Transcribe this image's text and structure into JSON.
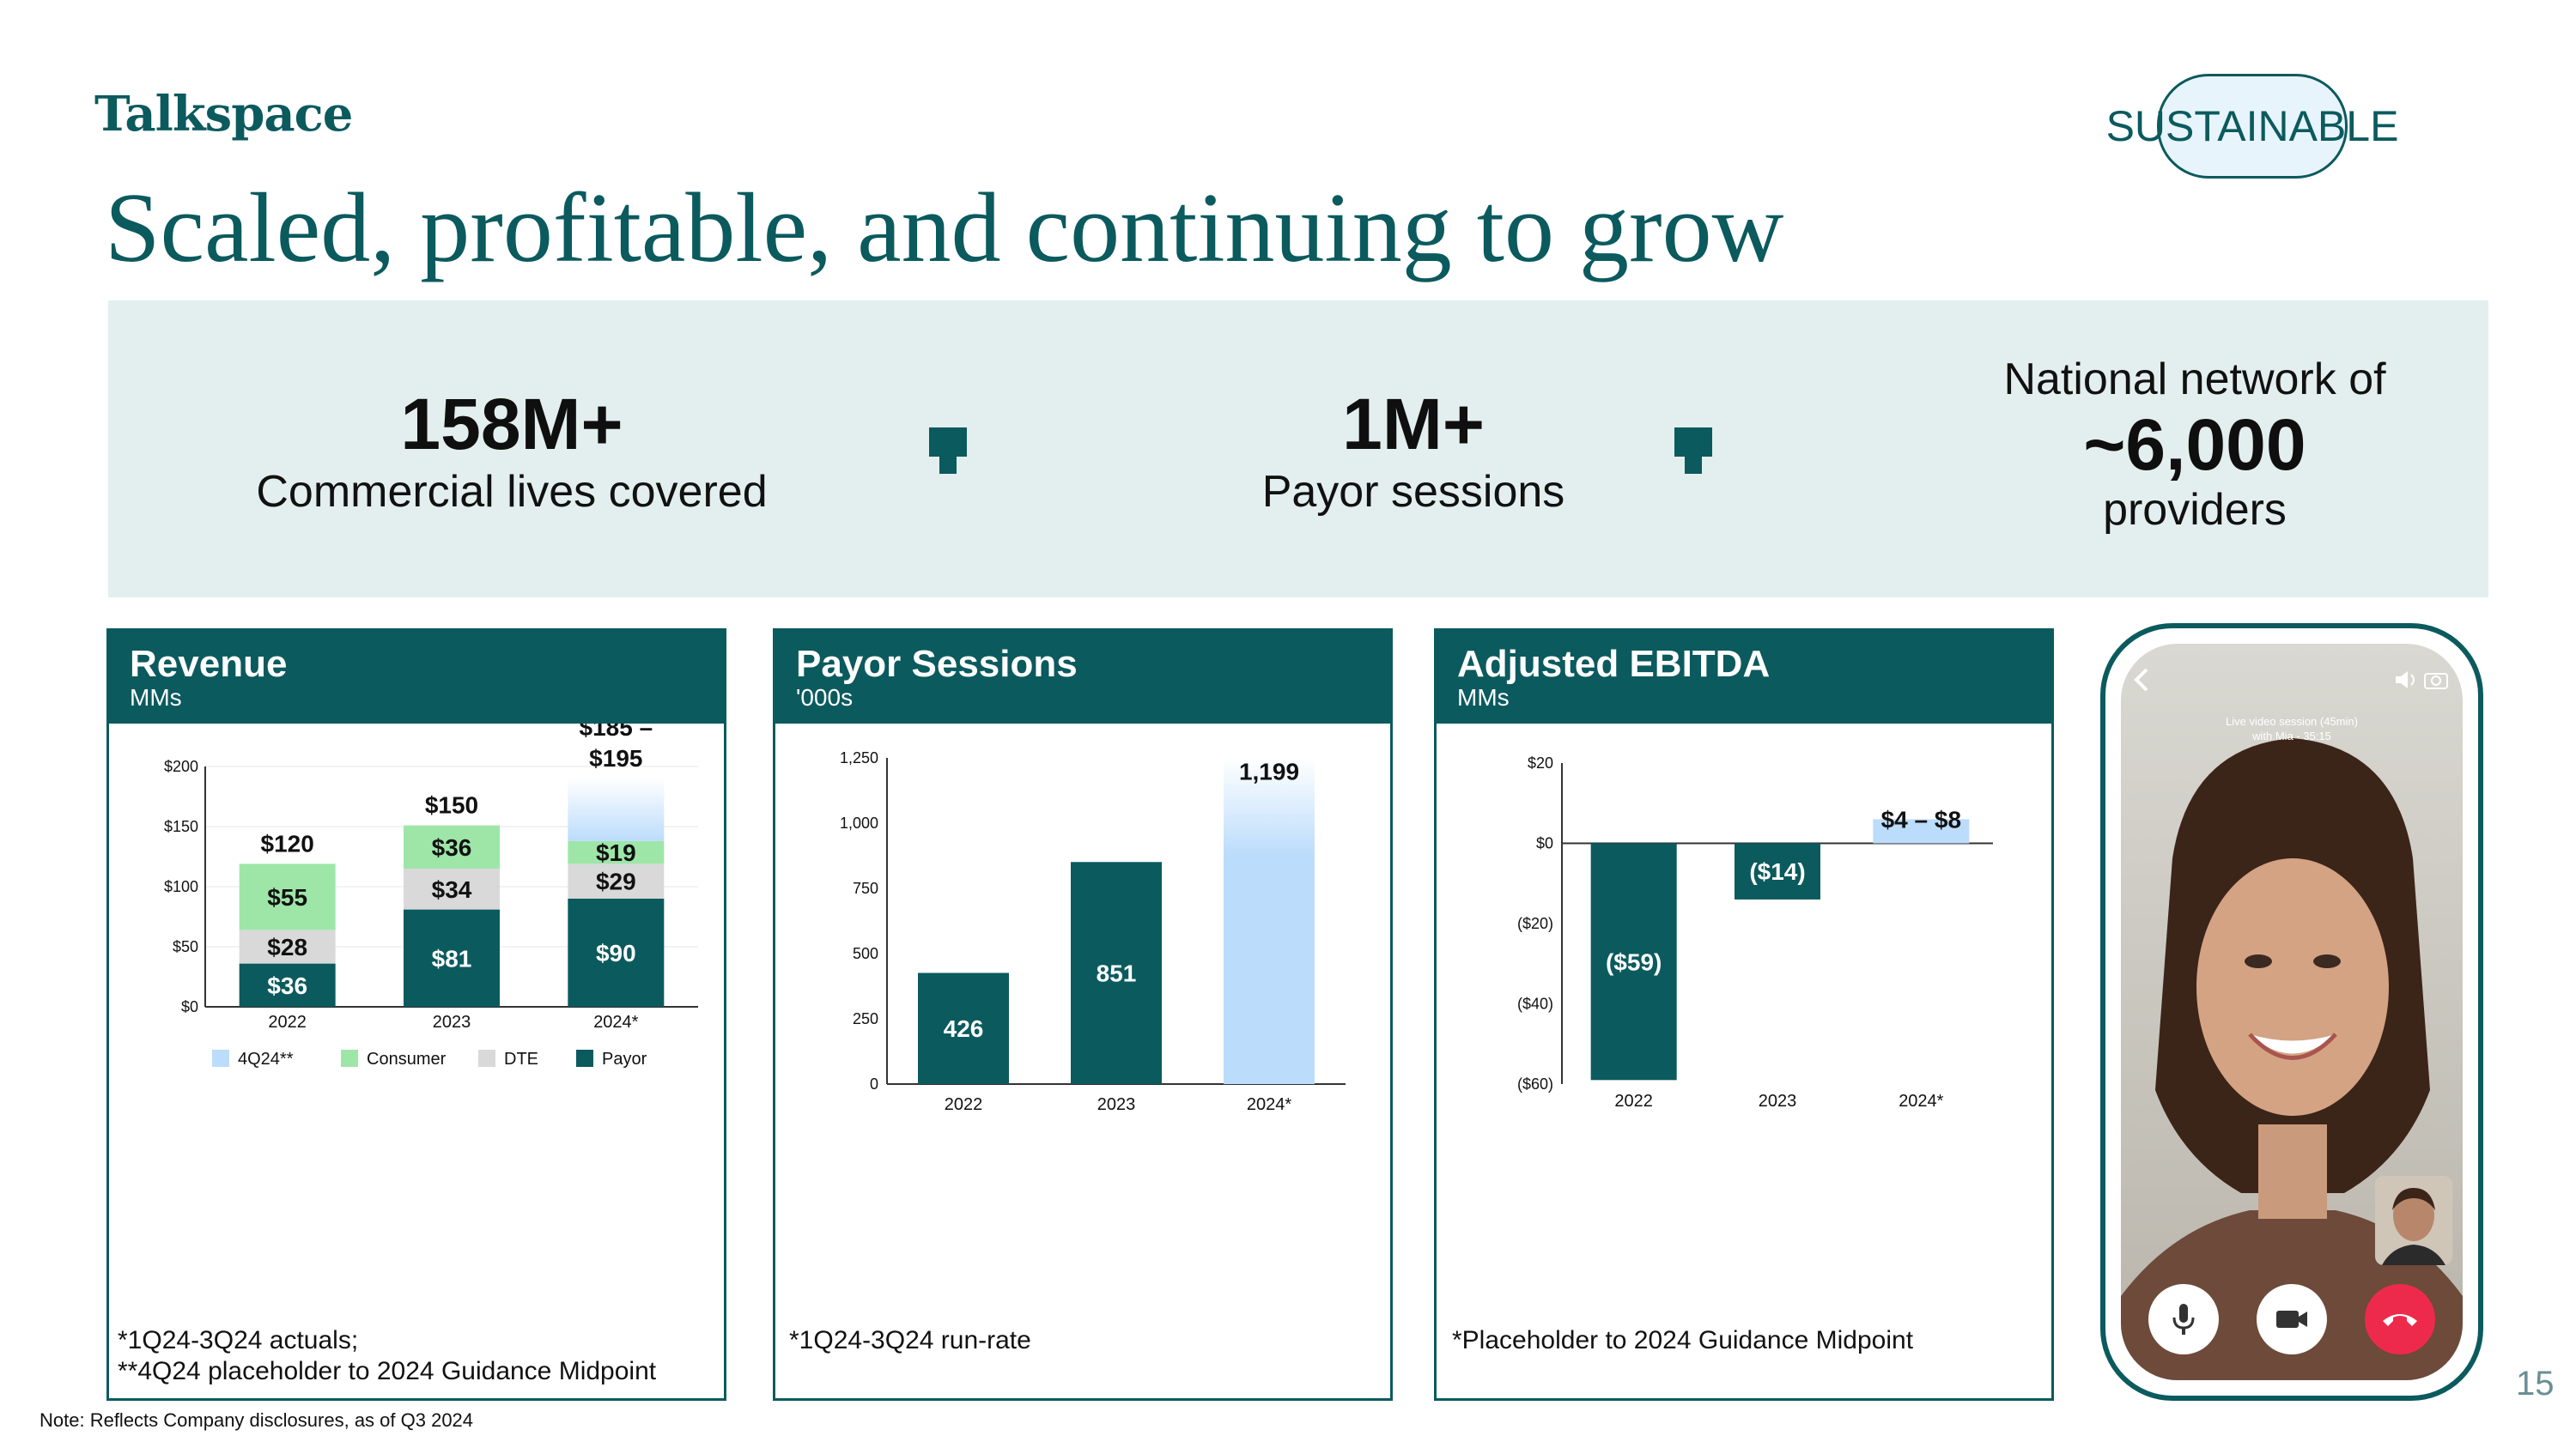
{
  "brand": {
    "logo_text": "Talkspace",
    "badge": "SUSTAINABLE",
    "page_number": "15"
  },
  "headline": "Scaled, profitable, and continuing to grow",
  "stats": [
    {
      "value": "158M+",
      "label": "Commercial lives covered"
    },
    {
      "value": "1M+",
      "label": "Payor sessions"
    },
    {
      "prefix": "National network of",
      "value": "~6,000",
      "label": "providers"
    }
  ],
  "note": "Note: Reflects Company disclosures, as of Q3 2024",
  "colors": {
    "teal": "#0b5a5e",
    "green": "#9ee6a8",
    "grey": "#d9d9d9",
    "light_blue": "#bcdcfb",
    "band": "#e3efee"
  },
  "panels": {
    "revenue": {
      "title": "Revenue",
      "unit": "MMs",
      "footnote_1": "*1Q24-3Q24 actuals;",
      "footnote_2": "**4Q24 placeholder to 2024 Guidance Midpoint"
    },
    "sessions": {
      "title": "Payor Sessions",
      "unit": "'000s",
      "footnote": "*1Q24-3Q24 run-rate"
    },
    "ebitda": {
      "title": "Adjusted EBITDA",
      "unit": "MMs",
      "footnote": "*Placeholder to 2024 Guidance Midpoint"
    }
  },
  "chart_data": [
    {
      "id": "revenue",
      "type": "bar",
      "stacked": true,
      "categories": [
        "2022",
        "2023",
        "2024*"
      ],
      "ylim": [
        0,
        200
      ],
      "yticks": [
        0,
        50,
        100,
        150,
        200
      ],
      "ytick_labels": [
        "$0",
        "$50",
        "$100",
        "$150",
        "$200"
      ],
      "series": [
        {
          "name": "Payor",
          "color": "#0b5a5e",
          "values": [
            36,
            81,
            90
          ],
          "labels": [
            "$36",
            "$81",
            "$90"
          ]
        },
        {
          "name": "DTE",
          "color": "#d9d9d9",
          "values": [
            28,
            34,
            29
          ],
          "labels": [
            "$28",
            "$34",
            "$29"
          ]
        },
        {
          "name": "Consumer",
          "color": "#9ee6a8",
          "values": [
            55,
            36,
            19
          ],
          "labels": [
            "$55",
            "$36",
            "$19"
          ]
        },
        {
          "name": "4Q24**",
          "color": "#bcdcfb",
          "values": [
            0,
            0,
            52
          ],
          "labels": [
            "",
            "",
            ""
          ]
        }
      ],
      "totals": [
        "$120",
        "$150",
        "$185 –\n$195"
      ],
      "legend": [
        "4Q24**",
        "Consumer",
        "DTE",
        "Payor"
      ]
    },
    {
      "id": "sessions",
      "type": "bar",
      "categories": [
        "2022",
        "2023",
        "2024*"
      ],
      "values": [
        426,
        851,
        1199
      ],
      "value_labels": [
        "426",
        "851",
        "1,199"
      ],
      "ylim": [
        0,
        1250
      ],
      "yticks": [
        0,
        250,
        500,
        750,
        1000,
        1250
      ],
      "ytick_labels": [
        "0",
        "250",
        "500",
        "750",
        "1,000",
        "1,250"
      ]
    },
    {
      "id": "ebitda",
      "type": "bar",
      "categories": [
        "2022",
        "2023",
        "2024*"
      ],
      "values": [
        -59,
        -14,
        6
      ],
      "value_labels": [
        "($59)",
        "($14)",
        "$4 – $8"
      ],
      "ylim": [
        -60,
        20
      ],
      "yticks": [
        20,
        0,
        -20,
        -40,
        -60
      ],
      "ytick_labels": [
        "$20",
        "$0",
        "($20)",
        "($40)",
        "($60)"
      ]
    }
  ],
  "phone": {
    "caption_1": "Live video session (45min)",
    "caption_2": "with Mia - 35:15"
  }
}
